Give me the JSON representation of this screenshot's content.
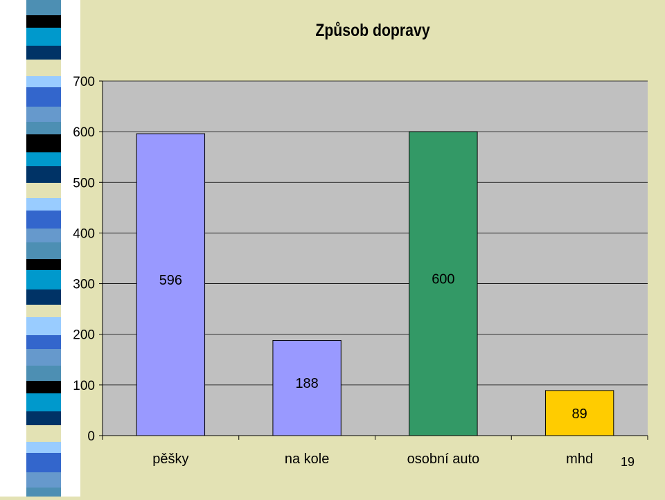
{
  "page": {
    "number": "19"
  },
  "colors": {
    "background": "#e3e2b4",
    "plot_area": "#c0c0c0",
    "bar_default": "#9999ff",
    "bar_auto": "#339966",
    "bar_mhd": "#ffcc00"
  },
  "chart_data": {
    "type": "bar",
    "title": "Způsob dopravy",
    "xlabel": "",
    "ylabel": "",
    "ylim": [
      0,
      700
    ],
    "yticks": [
      0,
      100,
      200,
      300,
      400,
      500,
      600,
      700
    ],
    "grid": true,
    "legend": "none",
    "categories": [
      "pěšky",
      "na kole",
      "osobní auto",
      "mhd"
    ],
    "values": [
      596,
      188,
      600,
      89
    ],
    "data_labels": [
      "596",
      "188",
      "600",
      "89"
    ],
    "bar_colors": [
      "#9999ff",
      "#9999ff",
      "#339966",
      "#ffcc00"
    ]
  }
}
